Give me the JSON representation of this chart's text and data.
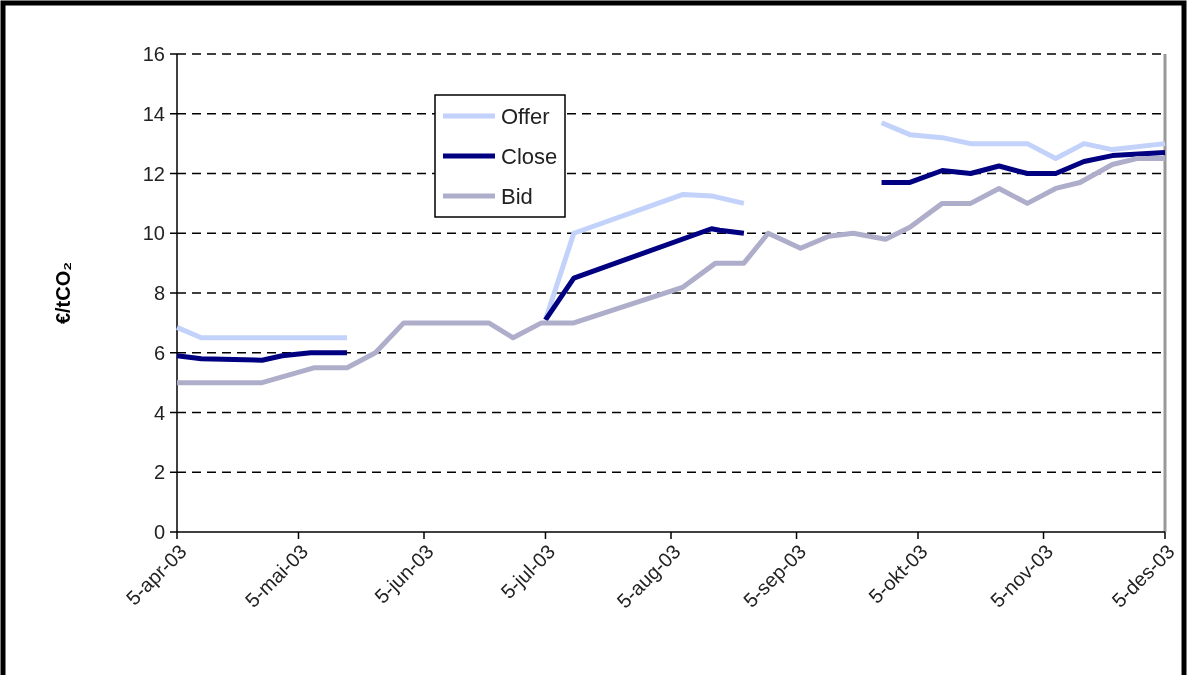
{
  "chart_data": {
    "type": "line",
    "ylabel": "€/tCO₂",
    "xlim": [
      "2003-04-05",
      "2003-12-05"
    ],
    "ylim": [
      0,
      16
    ],
    "yticks": [
      0,
      2,
      4,
      6,
      8,
      10,
      12,
      14,
      16
    ],
    "xticks": [
      {
        "value": "2003-04-05",
        "label": "5-apr-03"
      },
      {
        "value": "2003-05-05",
        "label": "5-mai-03"
      },
      {
        "value": "2003-06-05",
        "label": "5-jun-03"
      },
      {
        "value": "2003-07-05",
        "label": "5-jul-03"
      },
      {
        "value": "2003-08-05",
        "label": "5-aug-03"
      },
      {
        "value": "2003-09-05",
        "label": "5-sep-03"
      },
      {
        "value": "2003-10-05",
        "label": "5-okt-03"
      },
      {
        "value": "2003-11-05",
        "label": "5-nov-03"
      },
      {
        "value": "2003-12-05",
        "label": "5-des-03"
      }
    ],
    "grid": "y",
    "legend": "top",
    "line_style": "solid",
    "series": [
      {
        "name": "Offer",
        "color": "#c3d2fb",
        "x": [
          "2003-04-05",
          "2003-04-11",
          "2003-05-17",
          "2003-06-15",
          "2003-07-05",
          "2003-07-12",
          "2003-08-08",
          "2003-08-15",
          "2003-08-23",
          "2003-09-10",
          "2003-09-26",
          "2003-10-03",
          "2003-10-11",
          "2003-10-18",
          "2003-11-01",
          "2003-11-08",
          "2003-11-15",
          "2003-11-22",
          "2003-12-05"
        ],
        "values": [
          6.85,
          6.5,
          6.5,
          null,
          7.1,
          10.0,
          11.3,
          11.25,
          11.0,
          null,
          13.7,
          13.3,
          13.2,
          13.0,
          13.0,
          12.5,
          13.0,
          12.8,
          13.0
        ]
      },
      {
        "name": "Close",
        "color": "#000080",
        "x": [
          "2003-04-05",
          "2003-04-11",
          "2003-04-26",
          "2003-05-01",
          "2003-05-08",
          "2003-05-17",
          "2003-06-15",
          "2003-07-05",
          "2003-07-12",
          "2003-08-15",
          "2003-08-17",
          "2003-08-23",
          "2003-09-10",
          "2003-09-26",
          "2003-10-03",
          "2003-10-11",
          "2003-10-18",
          "2003-10-25",
          "2003-11-01",
          "2003-11-08",
          "2003-11-15",
          "2003-11-22",
          "2003-12-05"
        ],
        "values": [
          5.9,
          5.8,
          5.75,
          5.9,
          6.0,
          6.0,
          null,
          7.1,
          8.5,
          10.15,
          10.1,
          10.0,
          null,
          11.7,
          11.7,
          12.1,
          12.0,
          12.25,
          12.0,
          12.0,
          12.4,
          12.6,
          12.7
        ]
      },
      {
        "name": "Bid",
        "color": "#aeaecb",
        "x": [
          "2003-04-05",
          "2003-04-26",
          "2003-05-09",
          "2003-05-17",
          "2003-05-24",
          "2003-05-31",
          "2003-06-21",
          "2003-06-27",
          "2003-07-04",
          "2003-07-12",
          "2003-08-08",
          "2003-08-16",
          "2003-08-23",
          "2003-08-29",
          "2003-09-06",
          "2003-09-13",
          "2003-09-19",
          "2003-09-27",
          "2003-10-03",
          "2003-10-11",
          "2003-10-18",
          "2003-10-25",
          "2003-11-01",
          "2003-11-08",
          "2003-11-14",
          "2003-11-22",
          "2003-11-28",
          "2003-12-05"
        ],
        "values": [
          5.0,
          5.0,
          5.5,
          5.5,
          6.0,
          7.0,
          7.0,
          6.5,
          7.0,
          7.0,
          8.2,
          9.0,
          9.0,
          10.0,
          9.5,
          9.9,
          10.0,
          9.8,
          10.2,
          11.0,
          11.0,
          11.5,
          11.0,
          11.5,
          11.7,
          12.3,
          12.5,
          12.5
        ]
      }
    ]
  }
}
